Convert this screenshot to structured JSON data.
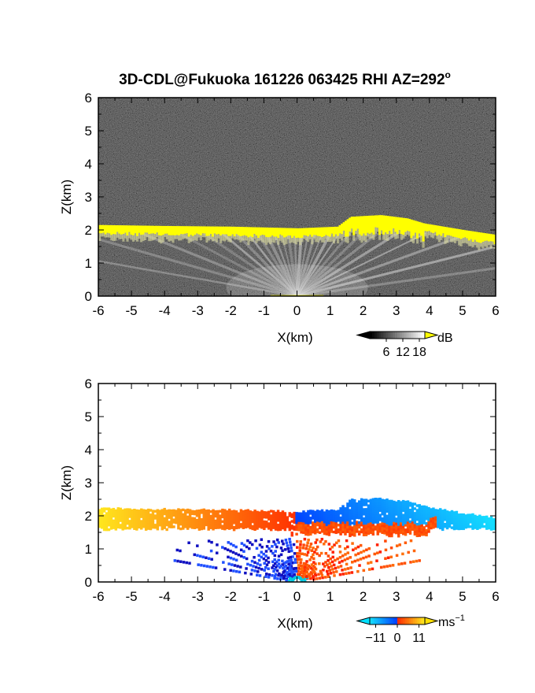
{
  "title_main": "3D-CDL@Fukuoka 161226 063425 RHI AZ=292",
  "title_degree": "o",
  "chart_data": [
    {
      "type": "heatmap",
      "name": "intensity",
      "xlabel": "X",
      "xlabel_unit": "(km)",
      "ylabel": "Z",
      "ylabel_unit": "(km)",
      "xlim": [
        -6,
        6
      ],
      "ylim": [
        0,
        6
      ],
      "x_ticks": [
        "-6",
        "-5",
        "-4",
        "-3",
        "-2",
        "-1",
        "0",
        "1",
        "2",
        "3",
        "4",
        "5",
        "6"
      ],
      "y_ticks": [
        "0",
        "1",
        "2",
        "3",
        "4",
        "5",
        "6"
      ],
      "colorbar": {
        "unit": "dB",
        "ticks": [
          "6",
          "12",
          "18"
        ],
        "range": [
          0,
          20
        ],
        "colors": [
          "#000000",
          "#ffffff",
          "#ffff00"
        ]
      },
      "layer_top": [
        [
          -6,
          2.15
        ],
        [
          -4,
          2.12
        ],
        [
          -2,
          2.1
        ],
        [
          0,
          2.05
        ],
        [
          1.2,
          2.1
        ],
        [
          1.6,
          2.4
        ],
        [
          2.5,
          2.45
        ],
        [
          3.3,
          2.35
        ],
        [
          3.8,
          2.2
        ],
        [
          5,
          2.0
        ],
        [
          6,
          1.85
        ]
      ],
      "ray_origin": [
        0,
        0
      ]
    },
    {
      "type": "heatmap",
      "name": "doppler",
      "xlabel": "X",
      "xlabel_unit": "(km)",
      "ylabel": "Z",
      "ylabel_unit": "(km)",
      "xlim": [
        -6,
        6
      ],
      "ylim": [
        0,
        6
      ],
      "x_ticks": [
        "-6",
        "-5",
        "-4",
        "-3",
        "-2",
        "-1",
        "0",
        "1",
        "2",
        "3",
        "4",
        "5",
        "6"
      ],
      "y_ticks": [
        "0",
        "1",
        "2",
        "3",
        "4",
        "5",
        "6"
      ],
      "colorbar": {
        "unit": "ms",
        "unit_exp": "−1",
        "ticks": [
          "−11",
          "0",
          "11"
        ],
        "tick_values": [
          -11,
          0,
          11
        ],
        "range": [
          -14,
          14
        ],
        "colors": [
          "#00e0ff",
          "#0050ff",
          "#1010c0",
          "#ff2000",
          "#ff8000",
          "#ffe000"
        ]
      }
    }
  ]
}
